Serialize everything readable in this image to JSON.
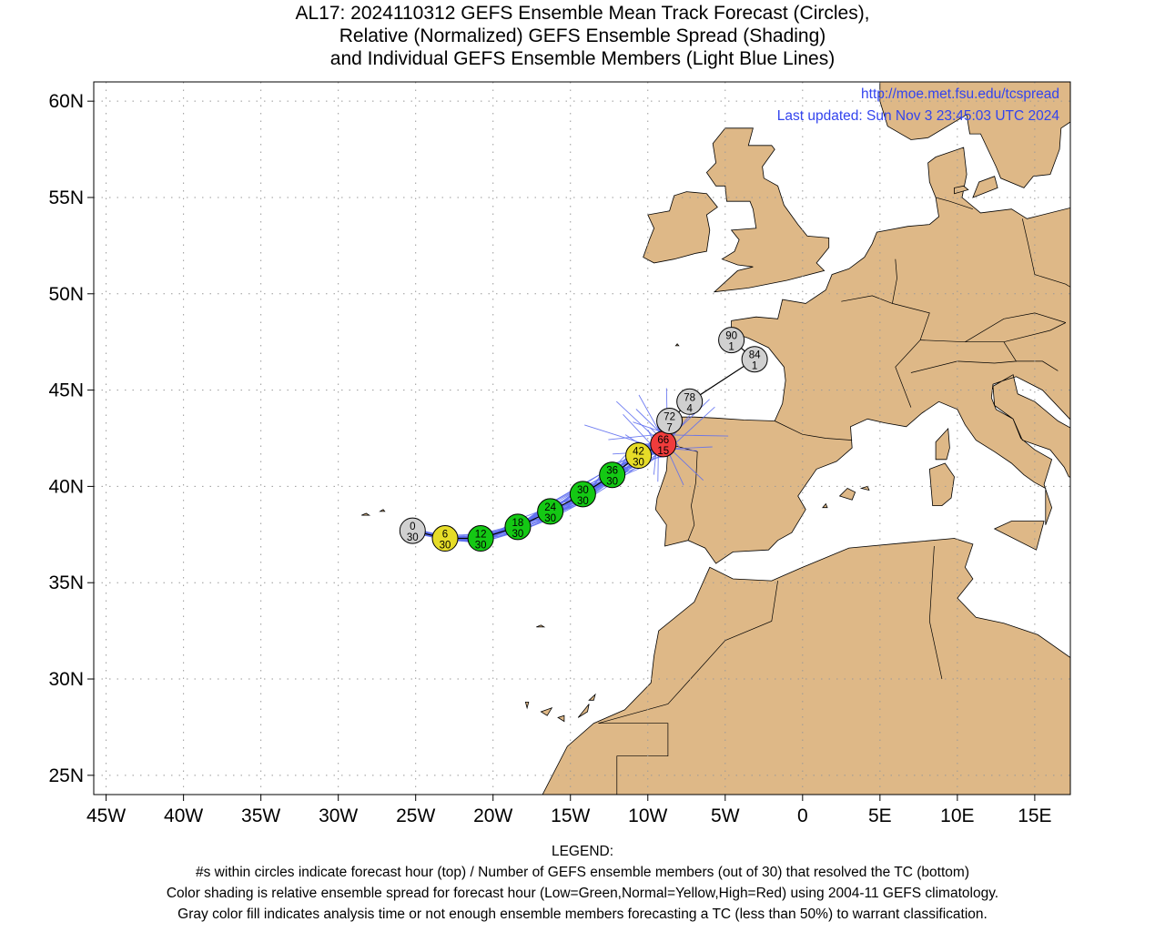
{
  "title": {
    "line1": "AL17: 2024110312 GEFS Ensemble Mean Track Forecast (Circles),",
    "line2": "Relative (Normalized) GEFS Ensemble Spread (Shading)",
    "line3": "and Individual GEFS Ensemble Members (Light Blue Lines)"
  },
  "source": {
    "url": "http://moe.met.fsu.edu/tcspread",
    "updated": "Last updated: Sun Nov  3 23:45:03 UTC 2024"
  },
  "axes": {
    "lon_labels": [
      "45W",
      "40W",
      "35W",
      "30W",
      "25W",
      "20W",
      "15W",
      "10W",
      "5W",
      "0",
      "5E",
      "10E",
      "15E"
    ],
    "lon_values": [
      -45,
      -40,
      -35,
      -30,
      -25,
      -20,
      -15,
      -10,
      -5,
      0,
      5,
      10,
      15
    ],
    "lat_labels": [
      "60N",
      "55N",
      "50N",
      "45N",
      "40N",
      "35N",
      "30N",
      "25N"
    ],
    "lat_values": [
      60,
      55,
      50,
      45,
      40,
      35,
      30,
      25
    ],
    "lon_range": [
      -45.8,
      17.3
    ],
    "lat_range": [
      24,
      61
    ],
    "grid": true
  },
  "colors": {
    "land": "#deb887",
    "ocean": "#ffffff",
    "member_tracks": "#5f6ff0",
    "low_spread": "#14c814",
    "normal_spread": "#e6dc28",
    "high_spread": "#f03c3c",
    "gray_fill": "#d0d0d0",
    "link_text": "#3344ee"
  },
  "track": [
    {
      "hour": "0",
      "members": "30",
      "lon": -25.2,
      "lat": 37.7,
      "spread": "gray"
    },
    {
      "hour": "6",
      "members": "30",
      "lon": -23.1,
      "lat": 37.3,
      "spread": "normal"
    },
    {
      "hour": "12",
      "members": "30",
      "lon": -20.8,
      "lat": 37.3,
      "spread": "low"
    },
    {
      "hour": "18",
      "members": "30",
      "lon": -18.4,
      "lat": 37.9,
      "spread": "low"
    },
    {
      "hour": "24",
      "members": "30",
      "lon": -16.3,
      "lat": 38.7,
      "spread": "low"
    },
    {
      "hour": "30",
      "members": "30",
      "lon": -14.2,
      "lat": 39.6,
      "spread": "low"
    },
    {
      "hour": "36",
      "members": "30",
      "lon": -12.3,
      "lat": 40.6,
      "spread": "low"
    },
    {
      "hour": "42",
      "members": "30",
      "lon": -10.6,
      "lat": 41.6,
      "spread": "normal"
    },
    {
      "hour": "66",
      "members": "15",
      "lon": -9.0,
      "lat": 42.2,
      "spread": "high"
    },
    {
      "hour": "72",
      "members": "7",
      "lon": -8.6,
      "lat": 43.4,
      "spread": "gray"
    },
    {
      "hour": "78",
      "members": "4",
      "lon": -7.3,
      "lat": 44.4,
      "spread": "gray"
    },
    {
      "hour": "84",
      "members": "1",
      "lon": -3.1,
      "lat": 46.6,
      "spread": "gray"
    },
    {
      "hour": "90",
      "members": "1",
      "lon": -4.6,
      "lat": 47.6,
      "spread": "gray"
    }
  ],
  "legend": {
    "heading": "LEGEND:",
    "line1": "#s within circles indicate forecast hour (top) / Number of GEFS ensemble members (out of 30) that resolved the TC (bottom)",
    "line2": "Color shading is relative ensemble spread for forecast hour (Low=Green,Normal=Yellow,High=Red) using 2004-11 GEFS climatology.",
    "line3": "Gray color fill indicates analysis time or not enough ensemble members forecasting a TC (less than 50%) to warrant classification."
  }
}
